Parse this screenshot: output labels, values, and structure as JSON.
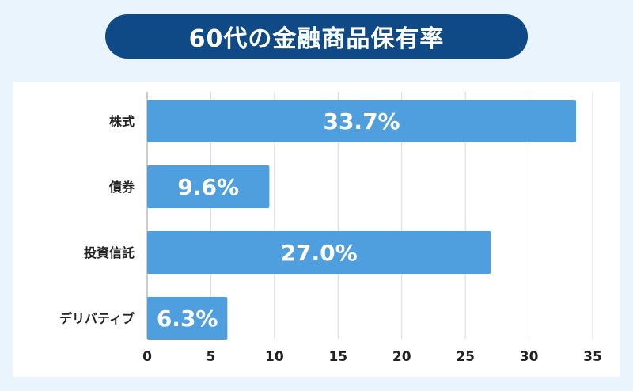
{
  "chart_data": {
    "type": "bar",
    "orientation": "horizontal",
    "title": "60代の金融商品保有率",
    "categories": [
      "株式",
      "債券",
      "投資信託",
      "デリバティブ"
    ],
    "values": [
      33.7,
      9.6,
      27.0,
      6.3
    ],
    "data_labels": [
      "33.7%",
      "9.6%",
      "27.0%",
      "6.3%"
    ],
    "xlim": [
      0,
      35
    ],
    "xticks": [
      0,
      5,
      10,
      15,
      20,
      25,
      30,
      35
    ],
    "grid": "vertical",
    "bar_color": "#4f9fdf",
    "title_bg_color": "#0f4a86",
    "xlabel": "",
    "ylabel": ""
  }
}
